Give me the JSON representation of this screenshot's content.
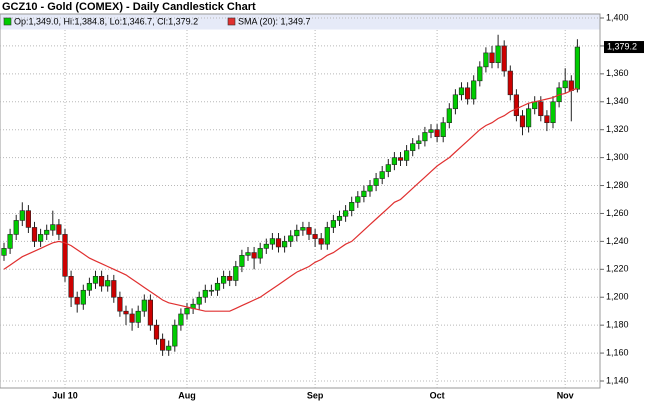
{
  "chart_data": {
    "type": "candlestick",
    "title": "GCZ10 - Gold (COMEX) - Daily Candlestick Chart",
    "categories": [
      null,
      null,
      null,
      null,
      null,
      null,
      null,
      null,
      null,
      null,
      "Jul 10",
      null,
      null,
      null,
      null,
      null,
      null,
      null,
      null,
      null,
      null,
      null,
      null,
      null,
      null,
      null,
      null,
      null,
      null,
      null,
      "Aug",
      null,
      null,
      null,
      null,
      null,
      null,
      null,
      null,
      null,
      null,
      null,
      null,
      null,
      null,
      null,
      null,
      null,
      null,
      null,
      null,
      "Sep",
      null,
      null,
      null,
      null,
      null,
      null,
      null,
      null,
      null,
      null,
      null,
      null,
      null,
      null,
      null,
      null,
      null,
      null,
      null,
      "Oct",
      null,
      null,
      null,
      null,
      null,
      null,
      null,
      null,
      null,
      null,
      null,
      null,
      null,
      null,
      null,
      null,
      null,
      null,
      null,
      null,
      "Nov",
      null,
      null
    ],
    "series": [
      {
        "name": "Op:1,349.0, Hi:1,384.8, Lo:1,346.7, Cl:1,379.2",
        "color": "#00cc00",
        "down_color": "#cc0000",
        "open": [
          1230,
          1235,
          1245,
          1255,
          1262,
          1250,
          1240,
          1245,
          1248,
          1252,
          1245,
          1215,
          1200,
          1195,
          1205,
          1210,
          1215,
          1208,
          1212,
          1200,
          1190,
          1188,
          1182,
          1190,
          1198,
          1180,
          1170,
          1162,
          1165,
          1180,
          1188,
          1192,
          1195,
          1200,
          1205,
          1205,
          1210,
          1215,
          1212,
          1222,
          1230,
          1232,
          1228,
          1235,
          1238,
          1242,
          1236,
          1240,
          1244,
          1248,
          1250,
          1245,
          1242,
          1238,
          1250,
          1255,
          1258,
          1262,
          1268,
          1272,
          1276,
          1280,
          1285,
          1290,
          1295,
          1300,
          1298,
          1305,
          1310,
          1312,
          1318,
          1320,
          1315,
          1325,
          1335,
          1345,
          1350,
          1342,
          1355,
          1365,
          1375,
          1368,
          1380,
          1362,
          1345,
          1330,
          1322,
          1335,
          1340,
          1330,
          1325,
          1340,
          1350,
          1355,
          1349.0
        ],
        "high": [
          1239,
          1249,
          1259,
          1268,
          1266,
          1254,
          1249,
          1252,
          1262,
          1256,
          1249,
          1219,
          1204,
          1209,
          1214,
          1219,
          1219,
          1216,
          1216,
          1204,
          1194,
          1192,
          1194,
          1202,
          1202,
          1184,
          1174,
          1169,
          1184,
          1192,
          1196,
          1199,
          1204,
          1209,
          1209,
          1214,
          1219,
          1219,
          1226,
          1234,
          1236,
          1236,
          1239,
          1242,
          1246,
          1246,
          1244,
          1248,
          1252,
          1254,
          1254,
          1249,
          1246,
          1254,
          1259,
          1262,
          1266,
          1272,
          1276,
          1280,
          1284,
          1289,
          1294,
          1299,
          1304,
          1304,
          1309,
          1314,
          1316,
          1322,
          1324,
          1324,
          1329,
          1339,
          1349,
          1354,
          1354,
          1359,
          1369,
          1379,
          1380,
          1388,
          1384,
          1366,
          1349,
          1334,
          1339,
          1344,
          1344,
          1334,
          1344,
          1354,
          1364,
          1359,
          1384.8
        ],
        "low": [
          1226,
          1231,
          1241,
          1251,
          1246,
          1236,
          1236,
          1241,
          1244,
          1241,
          1211,
          1193,
          1189,
          1191,
          1201,
          1206,
          1204,
          1204,
          1196,
          1186,
          1180,
          1176,
          1178,
          1186,
          1176,
          1166,
          1158,
          1158,
          1161,
          1176,
          1184,
          1188,
          1191,
          1196,
          1201,
          1201,
          1206,
          1208,
          1208,
          1218,
          1226,
          1220,
          1224,
          1231,
          1234,
          1232,
          1232,
          1236,
          1240,
          1244,
          1241,
          1236,
          1234,
          1234,
          1246,
          1251,
          1254,
          1258,
          1264,
          1268,
          1272,
          1276,
          1281,
          1286,
          1291,
          1294,
          1294,
          1301,
          1306,
          1308,
          1314,
          1311,
          1311,
          1321,
          1331,
          1341,
          1338,
          1338,
          1351,
          1361,
          1364,
          1364,
          1358,
          1341,
          1326,
          1316,
          1318,
          1331,
          1326,
          1319,
          1321,
          1336,
          1346,
          1326,
          1346.7
        ],
        "close": [
          1235,
          1245,
          1255,
          1262,
          1250,
          1240,
          1245,
          1248,
          1252,
          1245,
          1215,
          1200,
          1195,
          1205,
          1210,
          1215,
          1208,
          1212,
          1200,
          1190,
          1188,
          1182,
          1190,
          1198,
          1180,
          1170,
          1162,
          1165,
          1180,
          1188,
          1192,
          1195,
          1200,
          1205,
          1205,
          1210,
          1215,
          1212,
          1222,
          1230,
          1232,
          1228,
          1235,
          1238,
          1242,
          1236,
          1240,
          1244,
          1248,
          1250,
          1245,
          1242,
          1238,
          1250,
          1255,
          1258,
          1262,
          1268,
          1272,
          1276,
          1280,
          1285,
          1290,
          1295,
          1300,
          1298,
          1305,
          1310,
          1312,
          1318,
          1320,
          1315,
          1325,
          1335,
          1345,
          1350,
          1342,
          1355,
          1365,
          1375,
          1368,
          1380,
          1362,
          1345,
          1330,
          1322,
          1335,
          1340,
          1330,
          1325,
          1340,
          1350,
          1355,
          1348,
          1379.2
        ]
      },
      {
        "name": "SMA (20): 1,349.7",
        "color": "#e03030",
        "values": [
          1220,
          1223,
          1226,
          1229,
          1231,
          1233,
          1235,
          1237,
          1239,
          1240,
          1239,
          1237,
          1234,
          1231,
          1228,
          1226,
          1224,
          1222,
          1220,
          1218,
          1216,
          1213,
          1210,
          1207,
          1204,
          1201,
          1198,
          1196,
          1195,
          1194,
          1193,
          1192,
          1191,
          1190,
          1190,
          1190,
          1190,
          1190,
          1192,
          1194,
          1196,
          1198,
          1200,
          1203,
          1206,
          1209,
          1212,
          1215,
          1218,
          1220,
          1222,
          1225,
          1227,
          1230,
          1232,
          1235,
          1238,
          1240,
          1244,
          1248,
          1252,
          1256,
          1260,
          1264,
          1268,
          1270,
          1274,
          1278,
          1282,
          1286,
          1290,
          1294,
          1297,
          1300,
          1304,
          1308,
          1312,
          1316,
          1320,
          1323,
          1325,
          1328,
          1330,
          1333,
          1335,
          1337,
          1339,
          1340,
          1341,
          1342,
          1343,
          1345,
          1346,
          1348,
          1349.7
        ]
      }
    ],
    "last_label": "1,379.2",
    "ylim": [
      1140,
      1400
    ],
    "yticks": [
      {
        "value": 1140,
        "label": "1,140"
      },
      {
        "value": 1160,
        "label": "1,160"
      },
      {
        "value": 1180,
        "label": "1,180"
      },
      {
        "value": 1200,
        "label": "1,200"
      },
      {
        "value": 1220,
        "label": "1,220"
      },
      {
        "value": 1240,
        "label": "1,240"
      },
      {
        "value": 1260,
        "label": "1,260"
      },
      {
        "value": 1280,
        "label": "1,280"
      },
      {
        "value": 1300,
        "label": "1,300"
      },
      {
        "value": 1320,
        "label": "1,320"
      },
      {
        "value": 1340,
        "label": "1,340"
      },
      {
        "value": 1360,
        "label": "1,360"
      },
      {
        "value": 1380,
        "label": "1,380"
      },
      {
        "value": 1400,
        "label": "1,400"
      }
    ],
    "grid": true
  }
}
